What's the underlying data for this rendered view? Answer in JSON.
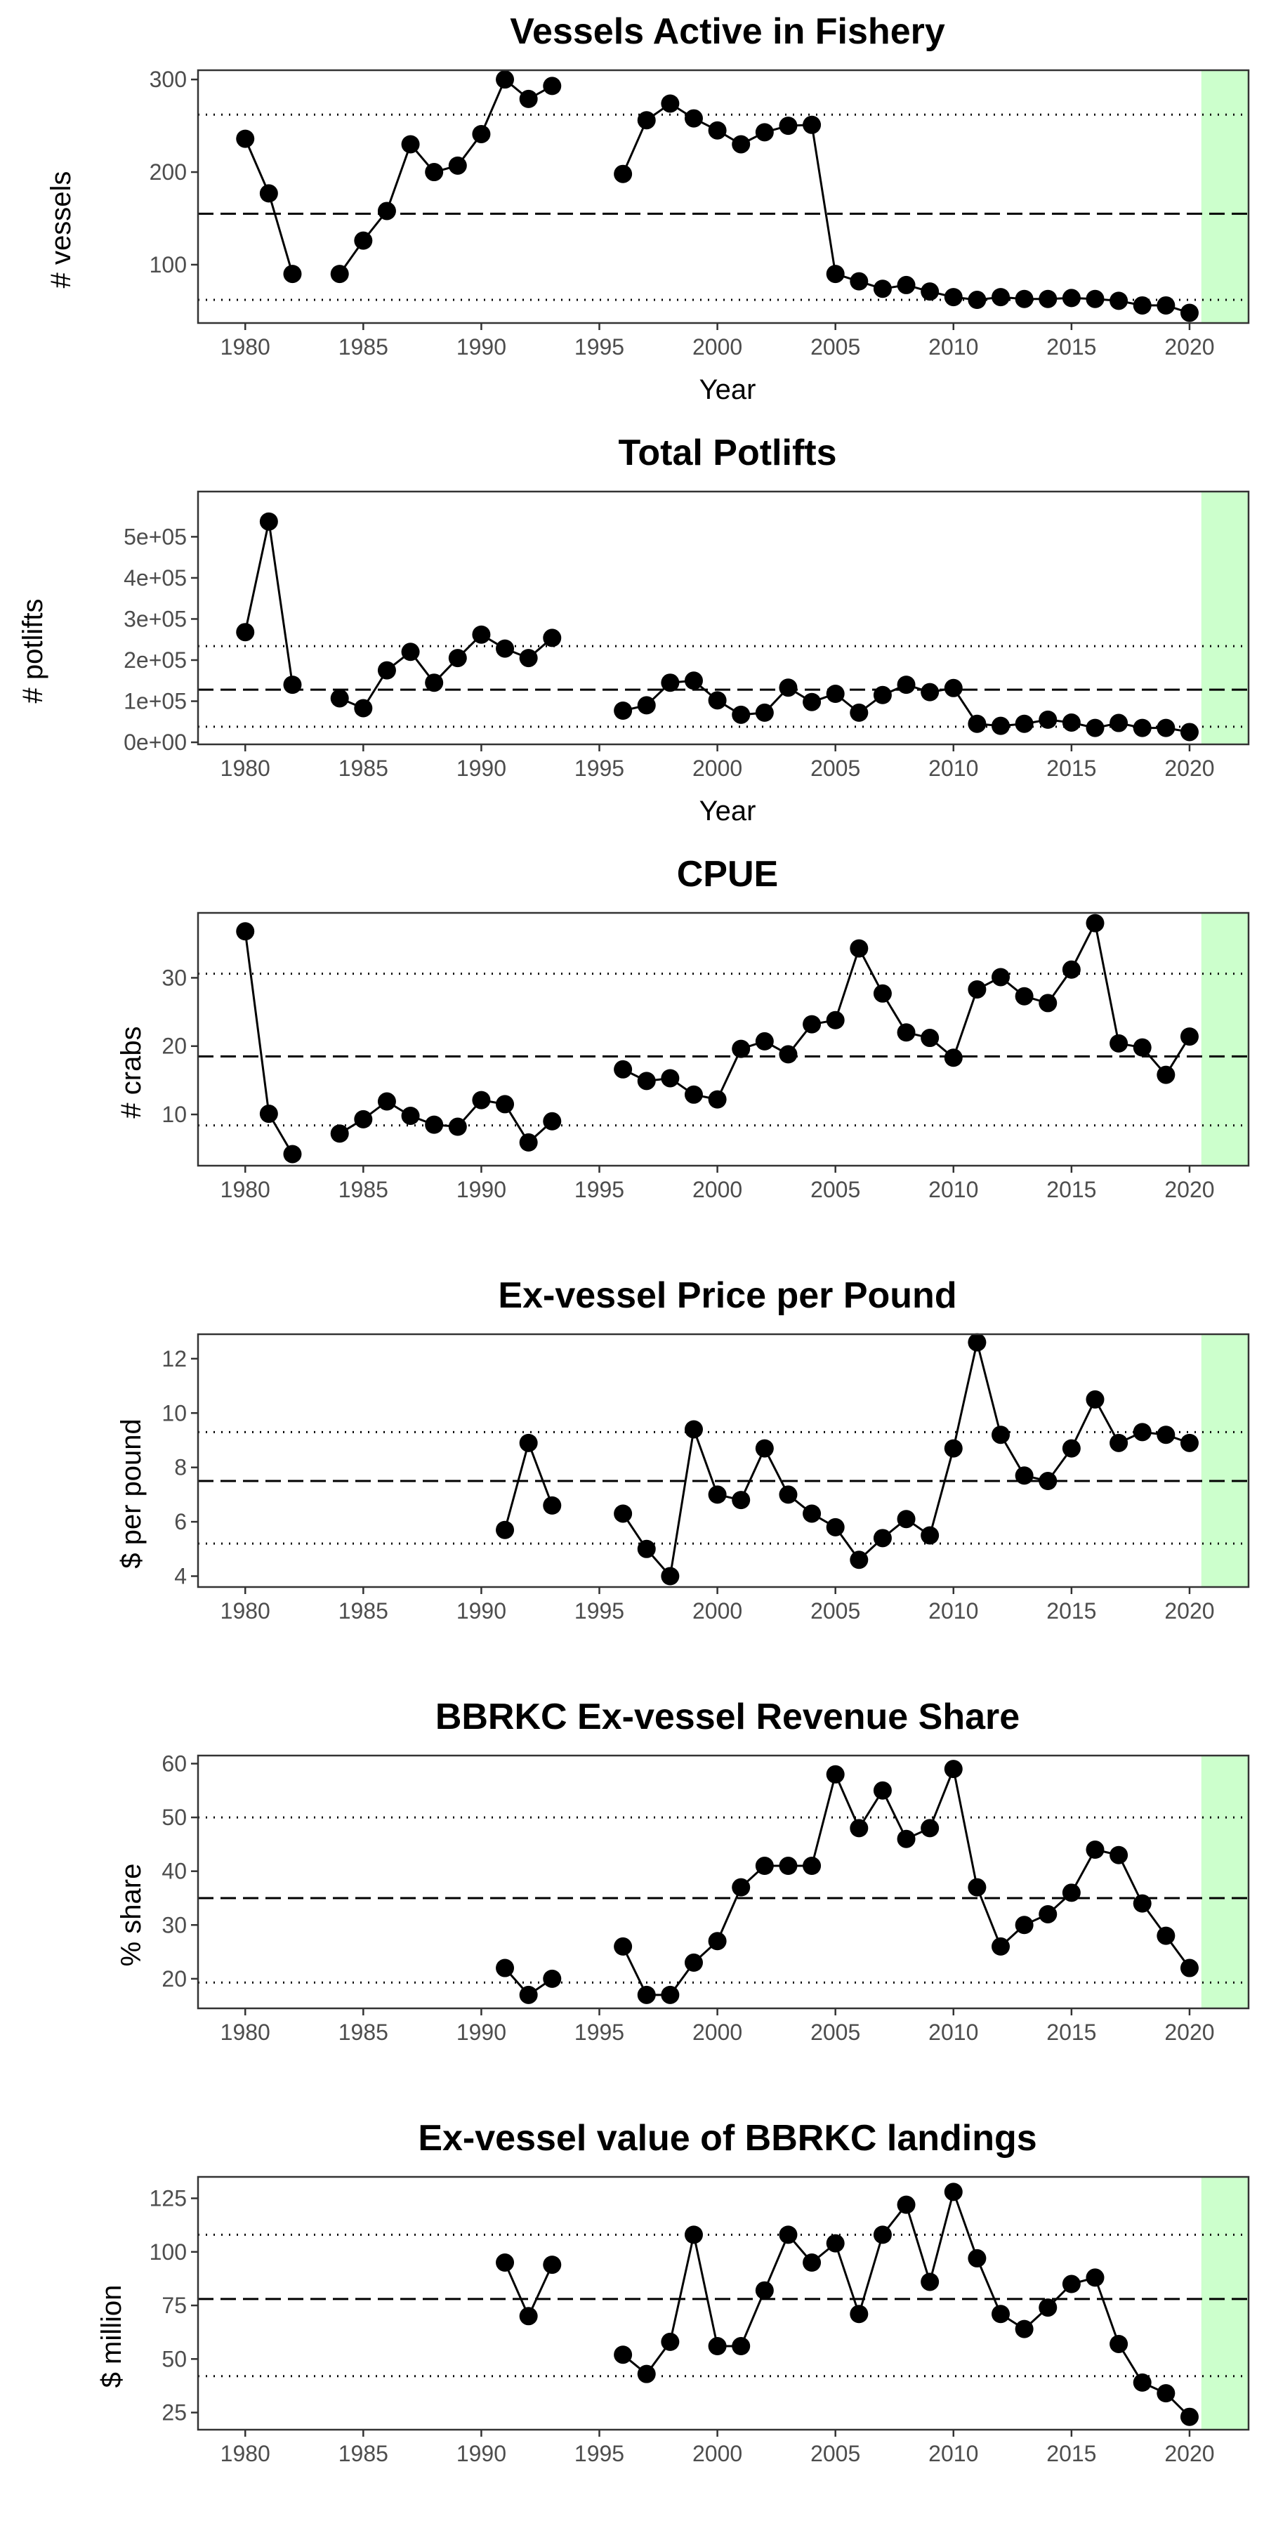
{
  "chart_data": [
    {
      "type": "line",
      "title": "Vessels Active in Fishery",
      "xlabel": "Year",
      "ylabel": "# vessels",
      "xlim": [
        1978,
        2022.5
      ],
      "ylim": [
        37,
        310
      ],
      "xticks": [
        1980,
        1985,
        1990,
        1995,
        2000,
        2005,
        2010,
        2015,
        2020
      ],
      "yticks": [
        100,
        200,
        300
      ],
      "ytick_labels": [
        "100",
        "200",
        "300"
      ],
      "mean": 155,
      "sd_upper": 262,
      "sd_lower": 62,
      "highlight_start": 2020.5,
      "x": [
        1980,
        1981,
        1982,
        1983,
        1984,
        1985,
        1986,
        1987,
        1988,
        1989,
        1990,
        1991,
        1992,
        1993,
        1994,
        1995,
        1996,
        1997,
        1998,
        1999,
        2000,
        2001,
        2002,
        2003,
        2004,
        2005,
        2006,
        2007,
        2008,
        2009,
        2010,
        2011,
        2012,
        2013,
        2014,
        2015,
        2016,
        2017,
        2018,
        2019,
        2020
      ],
      "y": [
        236,
        177,
        90,
        null,
        90,
        126,
        158,
        230,
        200,
        207,
        241,
        300,
        279,
        293,
        null,
        null,
        198,
        256,
        274,
        258,
        245,
        230,
        243,
        250,
        251,
        90,
        82,
        74,
        78,
        71,
        65,
        62,
        65,
        63,
        63,
        64,
        63,
        61,
        56,
        56,
        48
      ]
    },
    {
      "type": "line",
      "title": "Total Potlifts",
      "xlabel": "Year",
      "ylabel": "# potlifts",
      "xlim": [
        1978,
        2022.5
      ],
      "ylim": [
        -5000,
        610000
      ],
      "xticks": [
        1980,
        1985,
        1990,
        1995,
        2000,
        2005,
        2010,
        2015,
        2020
      ],
      "yticks": [
        0,
        100000,
        200000,
        300000,
        400000,
        500000
      ],
      "ytick_labels": [
        "0e+00",
        "1e+05",
        "2e+05",
        "3e+05",
        "4e+05",
        "5e+05"
      ],
      "mean": 128000,
      "sd_upper": 234000,
      "sd_lower": 38000,
      "highlight_start": 2020.5,
      "x": [
        1980,
        1981,
        1982,
        1983,
        1984,
        1985,
        1986,
        1987,
        1988,
        1989,
        1990,
        1991,
        1992,
        1993,
        1994,
        1995,
        1996,
        1997,
        1998,
        1999,
        2000,
        2001,
        2002,
        2003,
        2004,
        2005,
        2006,
        2007,
        2008,
        2009,
        2010,
        2011,
        2012,
        2013,
        2014,
        2015,
        2016,
        2017,
        2018,
        2019,
        2020
      ],
      "y": [
        268000,
        537000,
        140000,
        null,
        107000,
        83000,
        175000,
        220000,
        145000,
        205000,
        262000,
        228000,
        205000,
        254000,
        null,
        null,
        77000,
        90000,
        145000,
        150000,
        102000,
        67000,
        72000,
        133000,
        98000,
        118000,
        72000,
        115000,
        140000,
        122000,
        132000,
        45000,
        40000,
        45000,
        55000,
        48000,
        35000,
        47000,
        35000,
        35000,
        25000
      ]
    },
    {
      "type": "line",
      "title": "CPUE",
      "xlabel": "",
      "ylabel": "# crabs",
      "xlim": [
        1978,
        2022.5
      ],
      "ylim": [
        2.5,
        39.5
      ],
      "xticks": [
        1980,
        1985,
        1990,
        1995,
        2000,
        2005,
        2010,
        2015,
        2020
      ],
      "yticks": [
        10,
        20,
        30
      ],
      "ytick_labels": [
        "10",
        "20",
        "30"
      ],
      "mean": 18.5,
      "sd_upper": 30.6,
      "sd_lower": 8.4,
      "highlight_start": 2020.5,
      "x": [
        1980,
        1981,
        1982,
        1983,
        1984,
        1985,
        1986,
        1987,
        1988,
        1989,
        1990,
        1991,
        1992,
        1993,
        1994,
        1995,
        1996,
        1997,
        1998,
        1999,
        2000,
        2001,
        2002,
        2003,
        2004,
        2005,
        2006,
        2007,
        2008,
        2009,
        2010,
        2011,
        2012,
        2013,
        2014,
        2015,
        2016,
        2017,
        2018,
        2019,
        2020
      ],
      "y": [
        36.8,
        10.1,
        4.2,
        null,
        7.2,
        9.3,
        11.9,
        9.8,
        8.5,
        8.2,
        12.1,
        11.5,
        5.9,
        9.0,
        null,
        null,
        16.6,
        14.9,
        15.3,
        12.9,
        12.2,
        19.6,
        20.7,
        18.8,
        23.2,
        23.8,
        34.3,
        27.7,
        22.0,
        21.2,
        18.3,
        28.3,
        30.1,
        27.3,
        26.3,
        31.2,
        38.0,
        20.4,
        19.8,
        15.8,
        21.4
      ]
    },
    {
      "type": "line",
      "title": "Ex-vessel Price per Pound",
      "xlabel": "",
      "ylabel": "$ per pound",
      "xlim": [
        1978,
        2022.5
      ],
      "ylim": [
        3.6,
        12.9
      ],
      "xticks": [
        1980,
        1985,
        1990,
        1995,
        2000,
        2005,
        2010,
        2015,
        2020
      ],
      "yticks": [
        4,
        6,
        8,
        10,
        12
      ],
      "ytick_labels": [
        "4",
        "6",
        "8",
        "10",
        "12"
      ],
      "mean": 7.5,
      "sd_upper": 9.3,
      "sd_lower": 5.2,
      "highlight_start": 2020.5,
      "x": [
        1980,
        1981,
        1982,
        1983,
        1984,
        1985,
        1986,
        1987,
        1988,
        1989,
        1990,
        1991,
        1992,
        1993,
        1994,
        1995,
        1996,
        1997,
        1998,
        1999,
        2000,
        2001,
        2002,
        2003,
        2004,
        2005,
        2006,
        2007,
        2008,
        2009,
        2010,
        2011,
        2012,
        2013,
        2014,
        2015,
        2016,
        2017,
        2018,
        2019,
        2020
      ],
      "y": [
        null,
        null,
        null,
        null,
        null,
        null,
        null,
        null,
        null,
        null,
        null,
        5.7,
        8.9,
        6.6,
        null,
        null,
        6.3,
        5.0,
        4.0,
        9.4,
        7.0,
        6.8,
        8.7,
        7.0,
        6.3,
        5.8,
        4.6,
        5.4,
        6.1,
        5.5,
        8.7,
        12.6,
        9.2,
        7.7,
        7.5,
        8.7,
        10.5,
        8.9,
        9.3,
        9.2,
        8.9
      ]
    },
    {
      "type": "line",
      "title": "BBRKC Ex-vessel Revenue Share",
      "xlabel": "",
      "ylabel": "% share",
      "xlim": [
        1978,
        2022.5
      ],
      "ylim": [
        14.5,
        61.5
      ],
      "xticks": [
        1980,
        1985,
        1990,
        1995,
        2000,
        2005,
        2010,
        2015,
        2020
      ],
      "yticks": [
        20,
        30,
        40,
        50,
        60
      ],
      "ytick_labels": [
        "20",
        "30",
        "40",
        "50",
        "60"
      ],
      "mean": 35,
      "sd_upper": 50,
      "sd_lower": 19.3,
      "highlight_start": 2020.5,
      "x": [
        1980,
        1981,
        1982,
        1983,
        1984,
        1985,
        1986,
        1987,
        1988,
        1989,
        1990,
        1991,
        1992,
        1993,
        1994,
        1995,
        1996,
        1997,
        1998,
        1999,
        2000,
        2001,
        2002,
        2003,
        2004,
        2005,
        2006,
        2007,
        2008,
        2009,
        2010,
        2011,
        2012,
        2013,
        2014,
        2015,
        2016,
        2017,
        2018,
        2019,
        2020
      ],
      "y": [
        null,
        null,
        null,
        null,
        null,
        null,
        null,
        null,
        null,
        null,
        null,
        22,
        17,
        20,
        null,
        null,
        26,
        17,
        17,
        23,
        27,
        37,
        41,
        41,
        41,
        58,
        48,
        55,
        46,
        48,
        59,
        37,
        26,
        30,
        32,
        36,
        44,
        43,
        34,
        28,
        22
      ]
    },
    {
      "type": "line",
      "title": "Ex-vessel value of BBRKC landings",
      "xlabel": "",
      "ylabel": "$ million",
      "xlim": [
        1978,
        2022.5
      ],
      "ylim": [
        17,
        135
      ],
      "xticks": [
        1980,
        1985,
        1990,
        1995,
        2000,
        2005,
        2010,
        2015,
        2020
      ],
      "yticks": [
        25,
        50,
        75,
        100,
        125
      ],
      "ytick_labels": [
        "25",
        "50",
        "75",
        "100",
        "125"
      ],
      "mean": 78,
      "sd_upper": 108,
      "sd_lower": 42,
      "highlight_start": 2020.5,
      "x": [
        1980,
        1981,
        1982,
        1983,
        1984,
        1985,
        1986,
        1987,
        1988,
        1989,
        1990,
        1991,
        1992,
        1993,
        1994,
        1995,
        1996,
        1997,
        1998,
        1999,
        2000,
        2001,
        2002,
        2003,
        2004,
        2005,
        2006,
        2007,
        2008,
        2009,
        2010,
        2011,
        2012,
        2013,
        2014,
        2015,
        2016,
        2017,
        2018,
        2019,
        2020
      ],
      "y": [
        null,
        null,
        null,
        null,
        null,
        null,
        null,
        null,
        null,
        null,
        null,
        95,
        70,
        94,
        null,
        null,
        52,
        43,
        58,
        108,
        56,
        56,
        82,
        108,
        95,
        104,
        71,
        108,
        122,
        86,
        128,
        97,
        71,
        64,
        74,
        85,
        88,
        57,
        39,
        34,
        23
      ]
    }
  ]
}
